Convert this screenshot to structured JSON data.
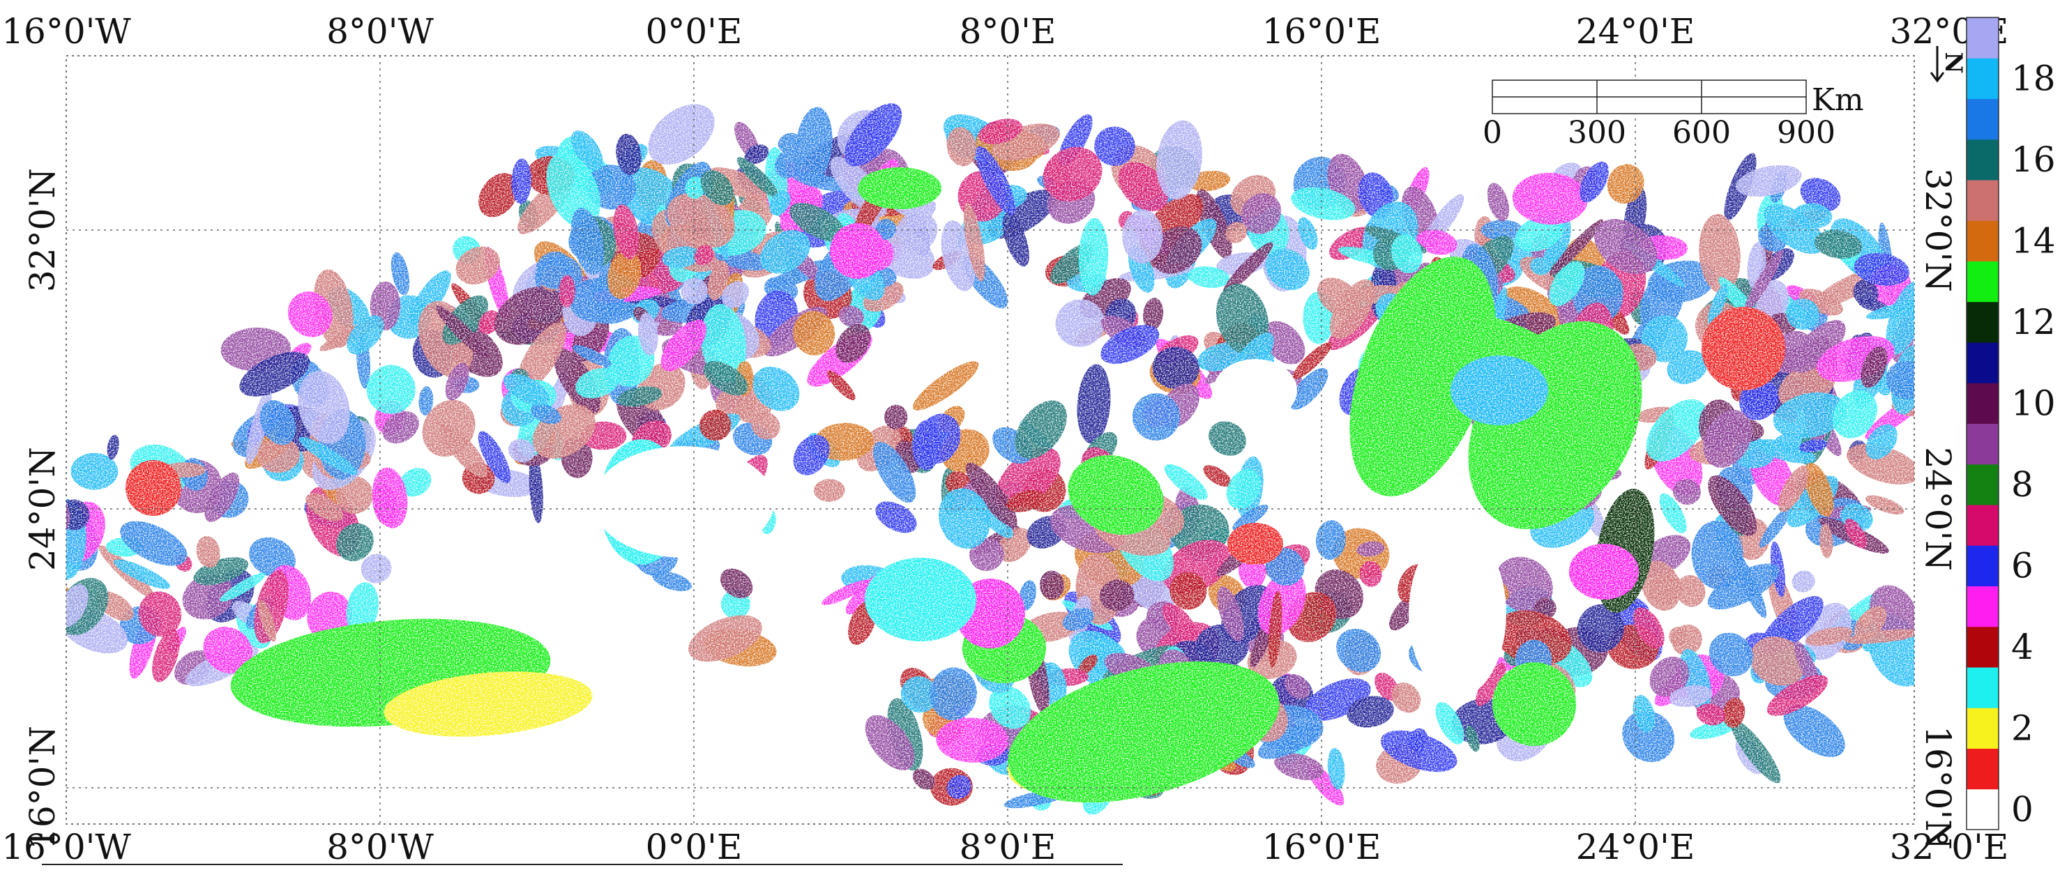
{
  "map": {
    "top_axis_labels": [
      "16°0'W",
      "8°0'W",
      "0°0'E",
      "8°0'E",
      "16°0'E",
      "24°0'E",
      "32°0'E"
    ],
    "bottom_axis_labels": [
      "16°0'W",
      "8°0'W",
      "0°0'E",
      "8°0'E",
      "16°0'E",
      "24°0'E",
      "32°0'E"
    ],
    "left_axis_labels": [
      "32°0'N",
      "24°0'N",
      "16°0'N"
    ],
    "right_axis_labels": [
      "32°0'N",
      "24°0'N",
      "16°0'N"
    ],
    "north_symbol": "N",
    "scale_bar": {
      "unit": "Km",
      "ticks": [
        "0",
        "300",
        "600",
        "900"
      ]
    },
    "legend": {
      "tick_labels": [
        "0",
        "2",
        "4",
        "6",
        "8",
        "10",
        "12",
        "14",
        "16",
        "18"
      ],
      "class_colors": [
        "#ffffff",
        "#ee1c1c",
        "#f7f21e",
        "#1ef0f0",
        "#b0060b",
        "#ff1eef",
        "#1e27ee",
        "#d60a6b",
        "#138213",
        "#8b3a9a",
        "#5e0a4e",
        "#0a0a8c",
        "#062b06",
        "#12ee12",
        "#d46a10",
        "#cc7070",
        "#0a6a6a",
        "#1a78e6",
        "#12b7f5",
        "#a6a6f2"
      ]
    }
  }
}
